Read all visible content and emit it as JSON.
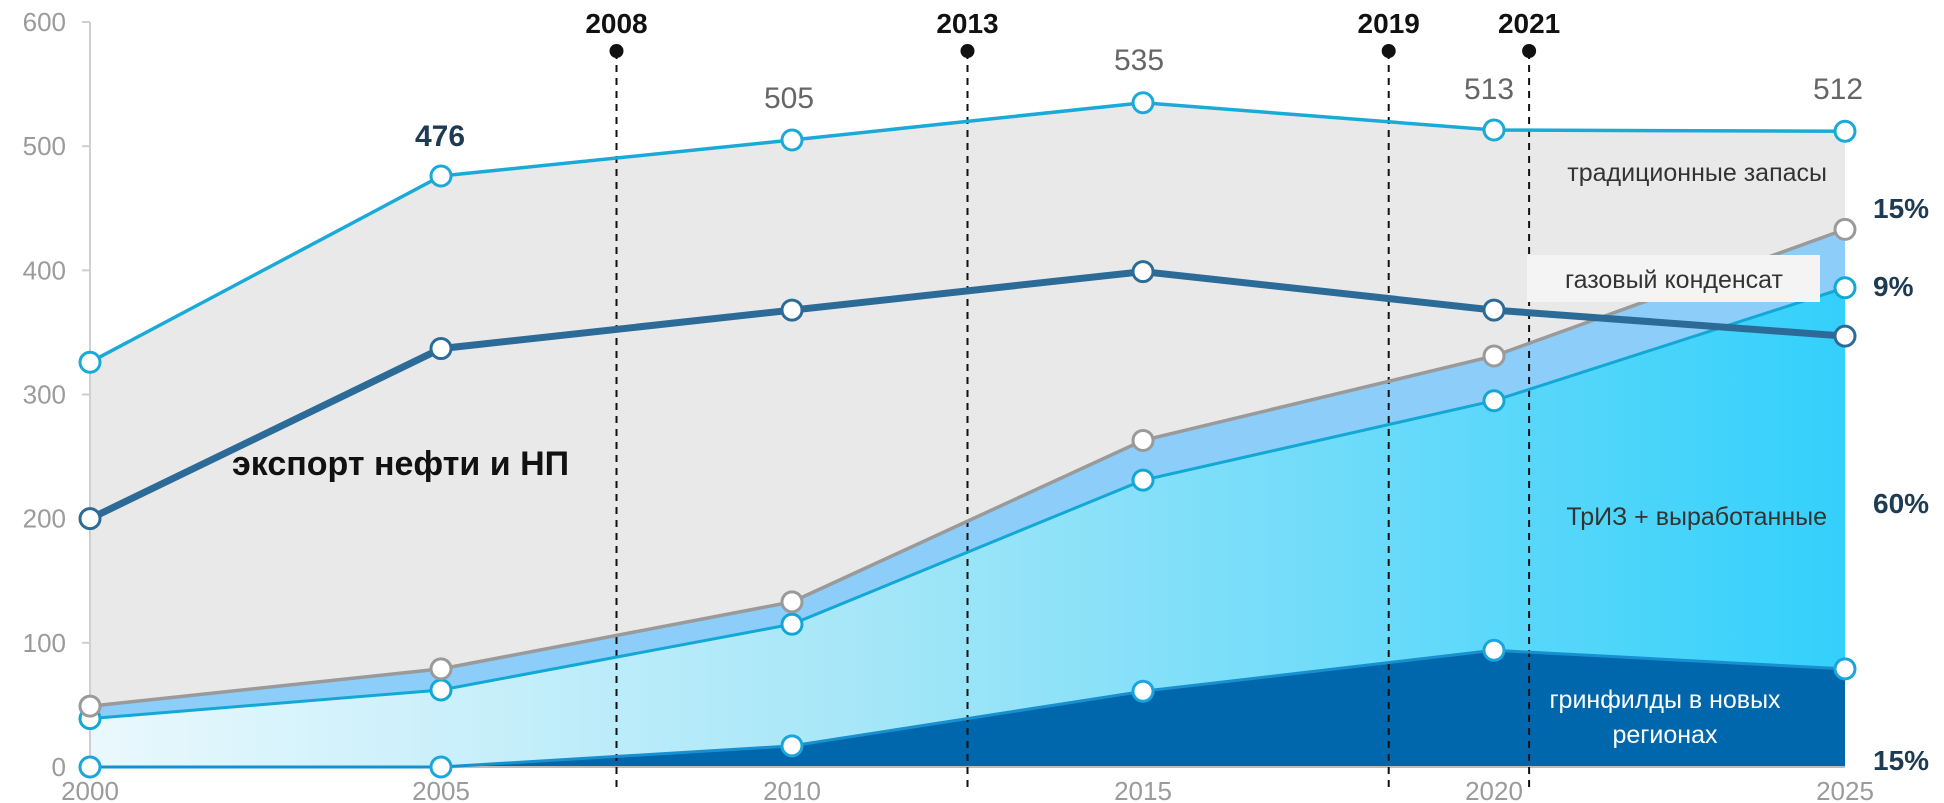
{
  "chart_data": {
    "type": "area",
    "x": [
      2000,
      2005,
      2010,
      2015,
      2020,
      2025
    ],
    "ylim": [
      0,
      600
    ],
    "yticks": [
      0,
      100,
      200,
      300,
      400,
      500,
      600
    ],
    "grid": false,
    "series": [
      {
        "name": "гринфилды в новых регионах",
        "kind": "area",
        "values": [
          0,
          0,
          17,
          61,
          94,
          79
        ]
      },
      {
        "name": "ТрИЗ + выработанные",
        "kind": "area",
        "values": [
          39,
          62,
          115,
          231,
          295,
          386
        ]
      },
      {
        "name": "газовый конденсат",
        "kind": "area",
        "values": [
          49,
          79,
          133,
          263,
          331,
          433
        ]
      },
      {
        "name": "традиционные запасы",
        "kind": "area",
        "values": [
          326,
          476,
          505,
          535,
          513,
          512
        ]
      },
      {
        "name": "экспорт нефти и НП",
        "kind": "line",
        "values": [
          200,
          337,
          368,
          399,
          368,
          347
        ]
      }
    ],
    "point_labels": {
      "2005": "476",
      "2010": "505",
      "2015": "535",
      "2020": "513",
      "2025": "512"
    },
    "event_years": [
      "2008",
      "2013",
      "2019",
      "2021"
    ],
    "shares_2025": [
      "15%",
      "9%",
      "60%",
      "15%"
    ],
    "area_labels": {
      "traditional": "традиционные запасы",
      "condensate": "газовый конденсат",
      "triz": "ТрИЗ + выработанные",
      "greenfield_line1": "гринфилды в новых",
      "greenfield_line2": "регионах"
    },
    "export_label": "экспорт нефти и НП",
    "colors": {
      "traditional_fill": "#e9e9e9",
      "traditional_line": "#1aaad8",
      "condensate_fill": "#8ccdfa",
      "condensate_line": "#9a9a9a",
      "triz_line": "#12a8d6",
      "greenfield_fill": "#0067ac",
      "export_line": "#2c6b98"
    }
  }
}
